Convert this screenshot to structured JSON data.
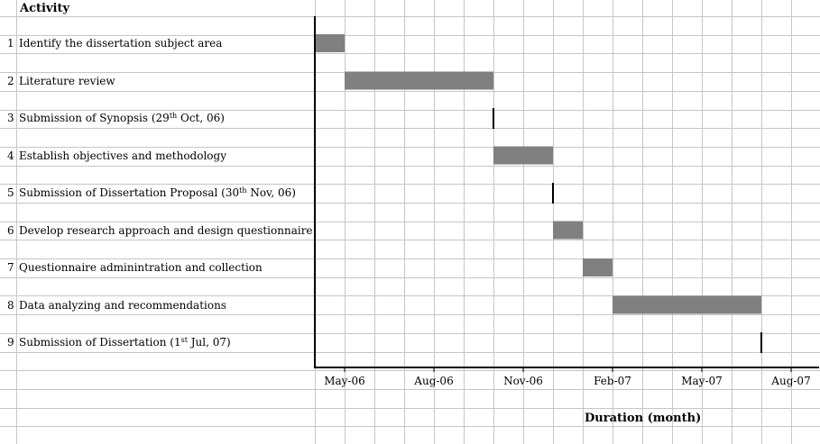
{
  "chart_data": {
    "type": "gantt",
    "header": "Activity",
    "xlabel": "Duration (month)",
    "x_ticks": [
      "May-06",
      "Aug-06",
      "Nov-06",
      "Feb-07",
      "May-07",
      "Aug-07"
    ],
    "x_range": [
      "2006-04",
      "2007-09"
    ],
    "tasks": [
      {
        "num": "1",
        "label": "Identify the dissertation subject area",
        "start": "2006-04",
        "end": "2006-05",
        "milestone": false
      },
      {
        "num": "2",
        "label": "Literature review",
        "start": "2006-05",
        "end": "2006-10",
        "milestone": false
      },
      {
        "num": "3",
        "label_pre": "Submission of Synopsis (29",
        "sup": "th",
        "label_post": " Oct, 06)",
        "start": "2006-10",
        "end": "2006-10",
        "milestone": true
      },
      {
        "num": "4",
        "label": "Establish objectives and methodology",
        "start": "2006-10",
        "end": "2006-12",
        "milestone": false
      },
      {
        "num": "5",
        "label_pre": "Submission of Dissertation Proposal (30",
        "sup": "th",
        "label_post": " Nov, 06)",
        "start": "2006-12",
        "end": "2006-12",
        "milestone": true
      },
      {
        "num": "6",
        "label": "Develop research approach and design questionnaire",
        "start": "2006-12",
        "end": "2007-01",
        "milestone": false
      },
      {
        "num": "7",
        "label": "Questionnaire adminintration and collection",
        "start": "2007-01",
        "end": "2007-02",
        "milestone": false
      },
      {
        "num": "8",
        "label": "Data analyzing and recommendations",
        "start": "2007-02",
        "end": "2007-07",
        "milestone": false
      },
      {
        "num": "9",
        "label_pre": "Submission of Dissertation (1",
        "sup": "st",
        "label_post": " Jul, 07)",
        "start": "2007-07",
        "end": "2007-07",
        "milestone": true
      }
    ],
    "bar_color": "#808080",
    "grid": true
  }
}
